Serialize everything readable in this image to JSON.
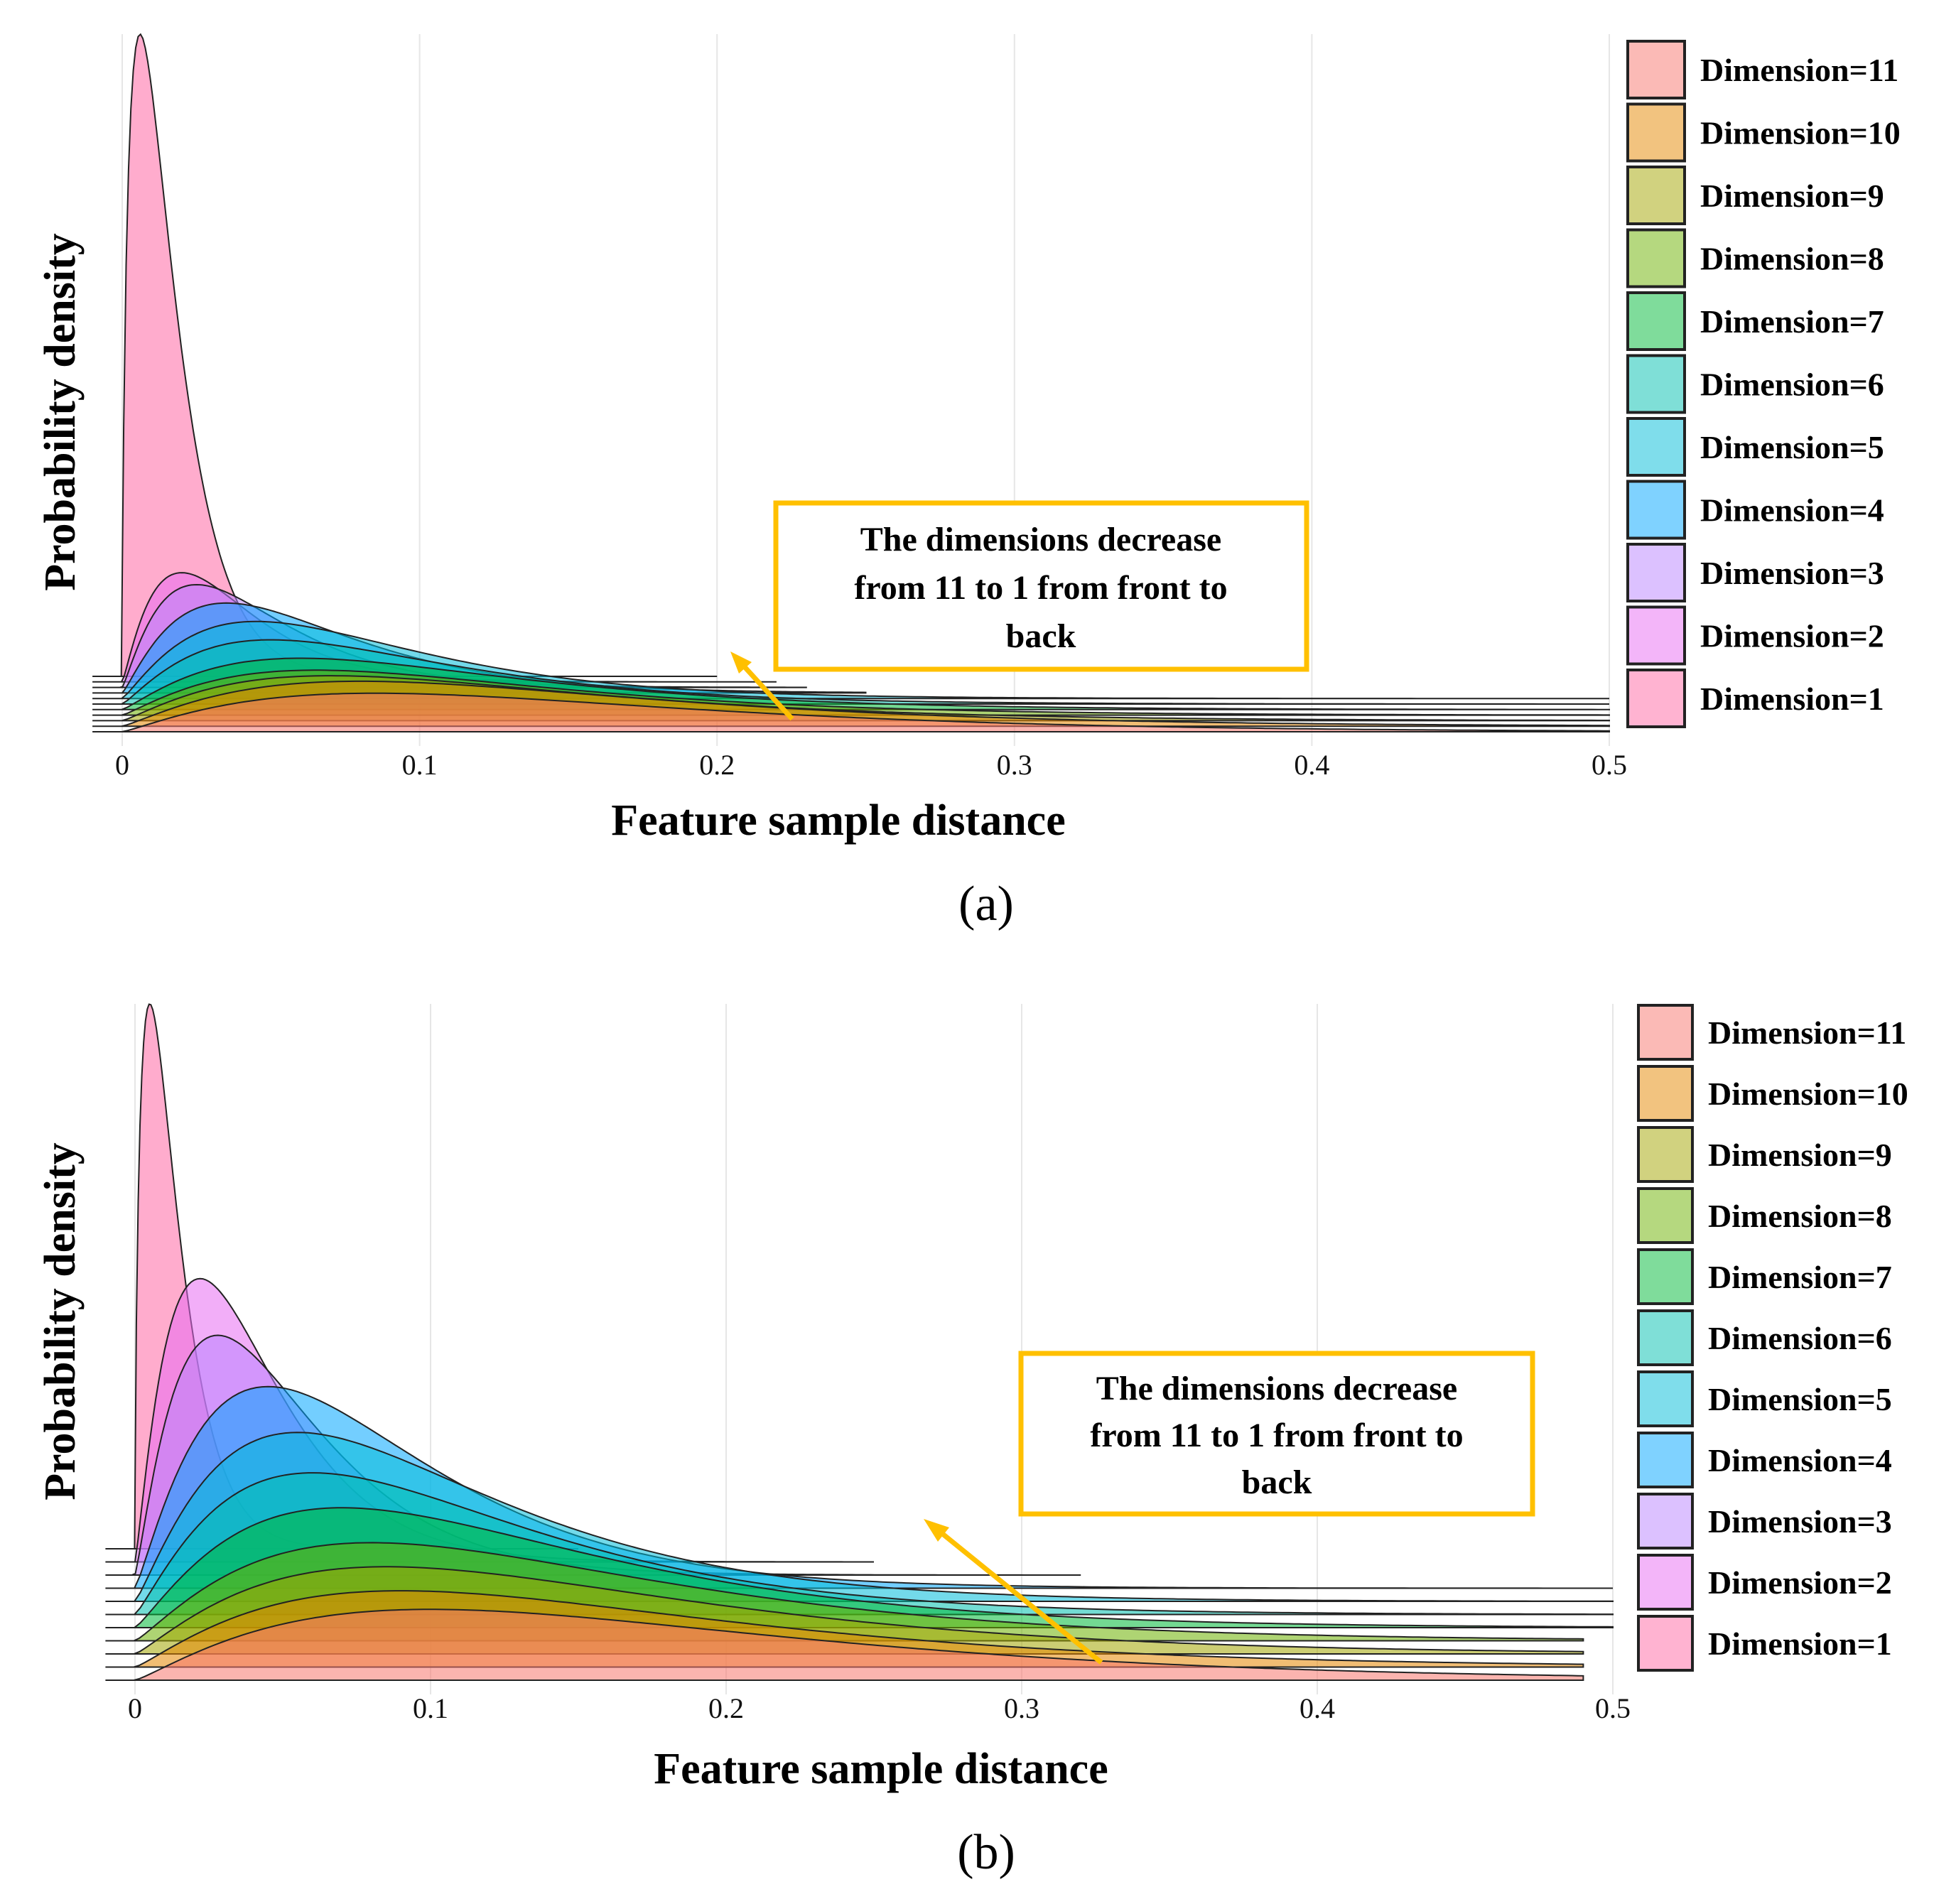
{
  "legend_colors": {
    "Dimension=11": "#F8766D",
    "Dimension=10": "#E58700",
    "Dimension=9": "#A3A500",
    "Dimension=8": "#6BB100",
    "Dimension=7": "#00BA38",
    "Dimension=6": "#00C0AF",
    "Dimension=5": "#00BCD8",
    "Dimension=4": "#00A5FF",
    "Dimension=3": "#B983FF",
    "Dimension=2": "#E76BF3",
    "Dimension=1": "#FF67A4"
  },
  "chart_data": [
    {
      "id": "a",
      "type": "ridgeline-density",
      "caption": "(a)",
      "xlabel": "Feature sample distance",
      "ylabel": "Probability density",
      "xlim": [
        0,
        0.5
      ],
      "xticks": [
        "0",
        "0.1",
        "0.2",
        "0.3",
        "0.4",
        "0.5"
      ],
      "legend": [
        "Dimension=11",
        "Dimension=10",
        "Dimension=9",
        "Dimension=8",
        "Dimension=7",
        "Dimension=6",
        "Dimension=5",
        "Dimension=4",
        "Dimension=3",
        "Dimension=2",
        "Dimension=1"
      ],
      "annotation": {
        "lines": [
          "The dimensions decrease",
          "from 11 to 1 from front to",
          "back"
        ]
      },
      "series": [
        {
          "name": "Dimension=1",
          "max_x": 0.2,
          "peak": 0.006,
          "height": 1.0
        },
        {
          "name": "Dimension=2",
          "max_x": 0.22,
          "peak": 0.02,
          "height": 0.17
        },
        {
          "name": "Dimension=3",
          "max_x": 0.23,
          "peak": 0.025,
          "height": 0.16
        },
        {
          "name": "Dimension=4",
          "max_x": 0.25,
          "peak": 0.035,
          "height": 0.14
        },
        {
          "name": "Dimension=5",
          "max_x": 0.5,
          "peak": 0.045,
          "height": 0.12
        },
        {
          "name": "Dimension=6",
          "max_x": 0.5,
          "peak": 0.05,
          "height": 0.1
        },
        {
          "name": "Dimension=7",
          "max_x": 0.5,
          "peak": 0.06,
          "height": 0.08
        },
        {
          "name": "Dimension=8",
          "max_x": 0.5,
          "peak": 0.065,
          "height": 0.07
        },
        {
          "name": "Dimension=9",
          "max_x": 0.5,
          "peak": 0.07,
          "height": 0.07
        },
        {
          "name": "Dimension=10",
          "max_x": 0.5,
          "peak": 0.08,
          "height": 0.07
        },
        {
          "name": "Dimension=11",
          "max_x": 0.5,
          "peak": 0.085,
          "height": 0.06
        }
      ]
    },
    {
      "id": "b",
      "type": "ridgeline-density",
      "caption": "(b)",
      "xlabel": "Feature sample distance",
      "ylabel": "Probability density",
      "xlim": [
        0,
        0.5
      ],
      "xticks": [
        "0",
        "0.1",
        "0.2",
        "0.3",
        "0.4",
        "0.5"
      ],
      "legend": [
        "Dimension=11",
        "Dimension=10",
        "Dimension=9",
        "Dimension=8",
        "Dimension=7",
        "Dimension=6",
        "Dimension=5",
        "Dimension=4",
        "Dimension=3",
        "Dimension=2",
        "Dimension=1"
      ],
      "annotation": {
        "lines": [
          "The dimensions decrease",
          "from 11 to 1 from front to",
          "back"
        ]
      },
      "series": [
        {
          "name": "Dimension=1",
          "max_x": 0.15,
          "peak": 0.005,
          "height": 1.0
        },
        {
          "name": "Dimension=2",
          "max_x": 0.25,
          "peak": 0.022,
          "height": 0.52
        },
        {
          "name": "Dimension=3",
          "max_x": 0.32,
          "peak": 0.028,
          "height": 0.44
        },
        {
          "name": "Dimension=4",
          "max_x": 0.5,
          "peak": 0.045,
          "height": 0.37
        },
        {
          "name": "Dimension=5",
          "max_x": 0.5,
          "peak": 0.055,
          "height": 0.31
        },
        {
          "name": "Dimension=6",
          "max_x": 0.5,
          "peak": 0.06,
          "height": 0.26
        },
        {
          "name": "Dimension=7",
          "max_x": 0.5,
          "peak": 0.07,
          "height": 0.22
        },
        {
          "name": "Dimension=8",
          "max_x": 0.49,
          "peak": 0.08,
          "height": 0.18
        },
        {
          "name": "Dimension=9",
          "max_x": 0.49,
          "peak": 0.085,
          "height": 0.16
        },
        {
          "name": "Dimension=10",
          "max_x": 0.49,
          "peak": 0.09,
          "height": 0.14
        },
        {
          "name": "Dimension=11",
          "max_x": 0.49,
          "peak": 0.1,
          "height": 0.13
        }
      ]
    }
  ]
}
